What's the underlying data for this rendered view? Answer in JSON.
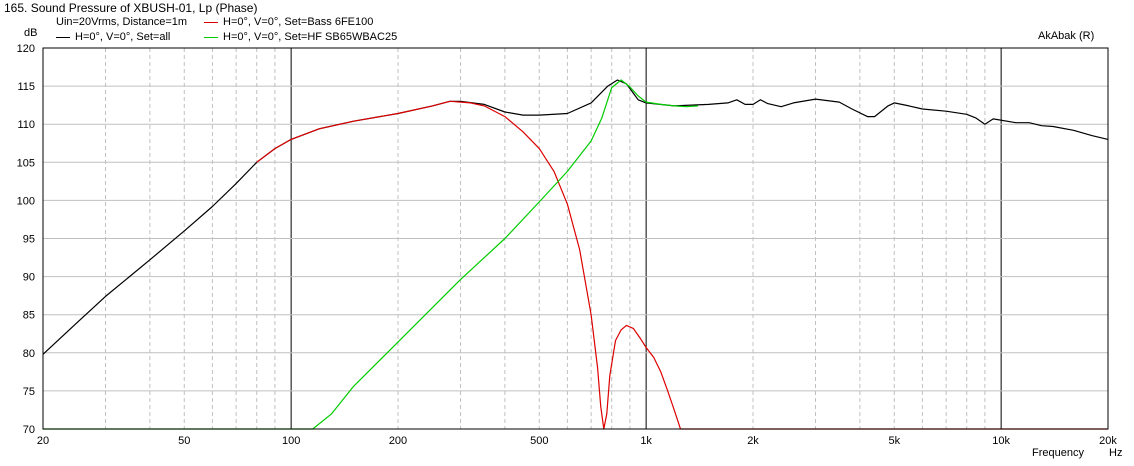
{
  "window": {
    "title": "165. Sound Pressure of XBUSH-01, Lp (Phase)",
    "subtitle": "Uin=20Vrms, Distance=1m",
    "brand": "AkAbak (R)"
  },
  "colors": {
    "background": "#ffffff",
    "grid": "#c0c0c0",
    "grid_major": "#000000",
    "frame": "#000000",
    "all": "#000000",
    "bass": "#dd0000",
    "hf": "#00cc00"
  },
  "chart_data": {
    "type": "line",
    "title": "165. Sound Pressure of XBUSH-01, Lp (Phase)",
    "subtitle": "Uin=20Vrms, Distance=1m",
    "ylabel": "dB",
    "xlabel": "Frequency",
    "xunit": "Hz",
    "xscale": "log",
    "xlim": [
      20,
      20000
    ],
    "ylim": [
      70,
      120
    ],
    "yticks": [
      120,
      115,
      110,
      105,
      100,
      95,
      90,
      85,
      80,
      75,
      70
    ],
    "xticks": [
      {
        "v": 20,
        "label": "20"
      },
      {
        "v": 50,
        "label": "50"
      },
      {
        "v": 100,
        "label": "100"
      },
      {
        "v": 200,
        "label": "200"
      },
      {
        "v": 500,
        "label": "500"
      },
      {
        "v": 1000,
        "label": "1k"
      },
      {
        "v": 2000,
        "label": "2k"
      },
      {
        "v": 5000,
        "label": "5k"
      },
      {
        "v": 10000,
        "label": "10k"
      },
      {
        "v": 20000,
        "label": "20k"
      }
    ],
    "grid": true,
    "legend": "top-left",
    "series": [
      {
        "name": "H=0°, V=0°, Set=all",
        "color": "#000000",
        "points": [
          [
            20,
            79.8
          ],
          [
            25,
            84
          ],
          [
            30,
            87.4
          ],
          [
            40,
            92.2
          ],
          [
            50,
            96
          ],
          [
            60,
            99.2
          ],
          [
            70,
            102.2
          ],
          [
            80,
            105
          ],
          [
            90,
            106.8
          ],
          [
            100,
            108
          ],
          [
            120,
            109.4
          ],
          [
            150,
            110.4
          ],
          [
            200,
            111.4
          ],
          [
            250,
            112.4
          ],
          [
            280,
            113
          ],
          [
            300,
            113
          ],
          [
            350,
            112.6
          ],
          [
            400,
            111.6
          ],
          [
            450,
            111.2
          ],
          [
            500,
            111.2
          ],
          [
            600,
            111.4
          ],
          [
            700,
            112.8
          ],
          [
            780,
            115
          ],
          [
            830,
            115.8
          ],
          [
            880,
            115.3
          ],
          [
            950,
            113.2
          ],
          [
            1000,
            112.8
          ],
          [
            1200,
            112.4
          ],
          [
            1500,
            112.6
          ],
          [
            1700,
            112.8
          ],
          [
            1800,
            113.2
          ],
          [
            1900,
            112.6
          ],
          [
            2000,
            112.6
          ],
          [
            2100,
            113.2
          ],
          [
            2200,
            112.7
          ],
          [
            2400,
            112.3
          ],
          [
            2600,
            112.8
          ],
          [
            3000,
            113.3
          ],
          [
            3500,
            112.9
          ],
          [
            3800,
            112
          ],
          [
            4200,
            111
          ],
          [
            4400,
            111
          ],
          [
            4800,
            112.4
          ],
          [
            5000,
            112.8
          ],
          [
            5500,
            112.4
          ],
          [
            6000,
            112
          ],
          [
            7000,
            111.7
          ],
          [
            8000,
            111.3
          ],
          [
            8500,
            110.8
          ],
          [
            9000,
            110
          ],
          [
            9500,
            110.7
          ],
          [
            11000,
            110.2
          ],
          [
            12000,
            110.2
          ],
          [
            13000,
            109.8
          ],
          [
            14000,
            109.7
          ],
          [
            16000,
            109.2
          ],
          [
            18000,
            108.5
          ],
          [
            20000,
            108
          ]
        ]
      },
      {
        "name": "H=0°, V=0°, Set=Bass 6FE100",
        "color": "#dd0000",
        "points": [
          [
            80,
            105
          ],
          [
            90,
            106.8
          ],
          [
            100,
            108
          ],
          [
            120,
            109.4
          ],
          [
            150,
            110.4
          ],
          [
            200,
            111.4
          ],
          [
            250,
            112.4
          ],
          [
            280,
            113
          ],
          [
            320,
            112.8
          ],
          [
            350,
            112.4
          ],
          [
            400,
            111
          ],
          [
            450,
            109
          ],
          [
            500,
            106.8
          ],
          [
            550,
            103.8
          ],
          [
            600,
            99.5
          ],
          [
            650,
            93.5
          ],
          [
            700,
            85
          ],
          [
            730,
            78
          ],
          [
            745,
            73
          ],
          [
            760,
            70
          ],
          [
            775,
            72
          ],
          [
            790,
            77
          ],
          [
            820,
            81.6
          ],
          [
            850,
            83
          ],
          [
            880,
            83.6
          ],
          [
            920,
            83.2
          ],
          [
            960,
            82
          ],
          [
            1000,
            80.7
          ],
          [
            1050,
            79.4
          ],
          [
            1100,
            77.5
          ],
          [
            1150,
            75
          ],
          [
            1200,
            72.5
          ],
          [
            1250,
            70
          ],
          [
            20000,
            70
          ]
        ]
      },
      {
        "name": "H=0°, V=0°, Set=HF SB65WBAC25",
        "color": "#00cc00",
        "points": [
          [
            20,
            70
          ],
          [
            110,
            70
          ],
          [
            115,
            70
          ],
          [
            130,
            72
          ],
          [
            150,
            75.6
          ],
          [
            200,
            81.4
          ],
          [
            300,
            89.6
          ],
          [
            400,
            95
          ],
          [
            500,
            99.8
          ],
          [
            600,
            103.8
          ],
          [
            700,
            107.8
          ],
          [
            750,
            110.8
          ],
          [
            800,
            114.8
          ],
          [
            850,
            115.8
          ],
          [
            900,
            114.9
          ],
          [
            950,
            113.7
          ],
          [
            1000,
            112.9
          ],
          [
            1100,
            112.6
          ],
          [
            1200,
            112.4
          ],
          [
            1300,
            112.3
          ],
          [
            1400,
            112.4
          ]
        ]
      }
    ]
  }
}
